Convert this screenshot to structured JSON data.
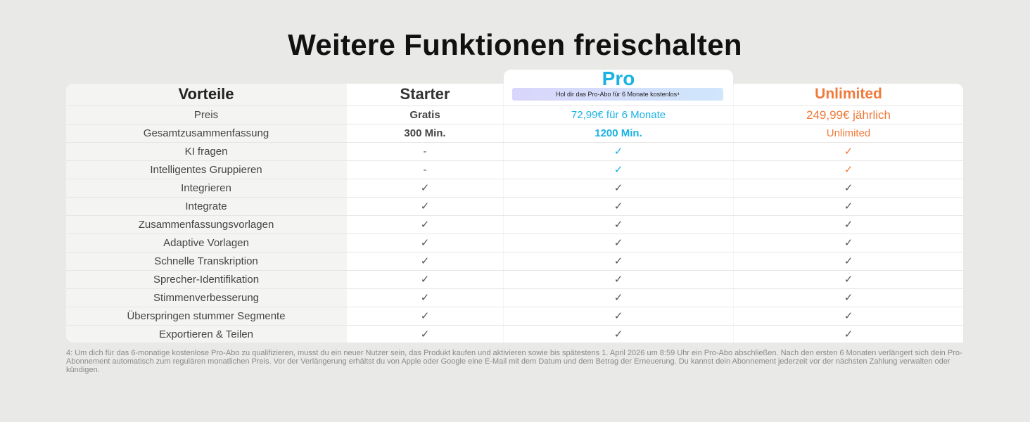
{
  "title": "Weitere Funktionen freischalten",
  "columns": {
    "label": "Vorteile",
    "starter": "Starter",
    "pro": "Pro",
    "pro_badge": "Hol dir das Pro-Abo für 6 Monate kostenlos⁴",
    "unlimited": "Unlimited"
  },
  "rows": [
    {
      "label": "Preis",
      "starter": "Gratis",
      "pro": "72,99€ für 6 Monate",
      "unlimited": "249,99€ jährlich"
    },
    {
      "label": "Gesamtzusammenfassung",
      "starter": "300 Min.",
      "pro": "1200 Min.",
      "unlimited": "Unlimited"
    },
    {
      "label": "KI fragen",
      "starter": "-",
      "pro": "✓",
      "unlimited": "✓"
    },
    {
      "label": "Intelligentes Gruppieren",
      "starter": "-",
      "pro": "✓",
      "unlimited": "✓"
    },
    {
      "label": "Integrieren",
      "starter": "✓",
      "pro": "✓",
      "unlimited": "✓"
    },
    {
      "label": "Integrate",
      "starter": "✓",
      "pro": "✓",
      "unlimited": "✓"
    },
    {
      "label": "Zusammenfassungsvorlagen",
      "starter": "✓",
      "pro": "✓",
      "unlimited": "✓"
    },
    {
      "label": "Adaptive Vorlagen",
      "starter": "✓",
      "pro": "✓",
      "unlimited": "✓"
    },
    {
      "label": "Schnelle Transkription",
      "starter": "✓",
      "pro": "✓",
      "unlimited": "✓"
    },
    {
      "label": "Sprecher-Identifikation",
      "starter": "✓",
      "pro": "✓",
      "unlimited": "✓"
    },
    {
      "label": "Stimmenverbesserung",
      "starter": "✓",
      "pro": "✓",
      "unlimited": "✓"
    },
    {
      "label": "Überspringen stummer Segmente",
      "starter": "✓",
      "pro": "✓",
      "unlimited": "✓"
    },
    {
      "label": "Exportieren & Teilen",
      "starter": "✓",
      "pro": "✓",
      "unlimited": "✓"
    }
  ],
  "footnote": "4: Um dich für das 6-monatige kostenlose Pro-Abo zu qualifizieren, musst du ein neuer Nutzer sein, das Produkt kaufen und aktivieren sowie bis spätestens 1. April 2026 um 8:59 Uhr ein Pro-Abo abschließen. Nach den ersten 6 Monaten verlängert sich dein Pro-Abonnement automatisch zum regulären monatlichen Preis. Vor der Verlängerung erhältst du von Apple oder Google eine E-Mail mit dem Datum und dem Betrag der Erneuerung. Du kannst dein Abonnement jederzeit vor der nächsten Zahlung verwalten oder kündigen.",
  "colors": {
    "pro": "#1ab2e3",
    "unlimited": "#f07a3a"
  }
}
